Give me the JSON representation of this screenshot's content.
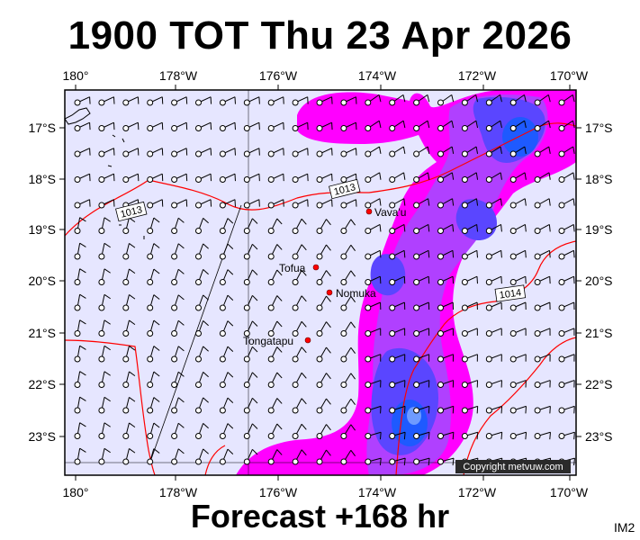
{
  "title": "1900 TOT Thu 23 Apr 2026",
  "footer": "Forecast +168 hr",
  "corner_tag": "IM2",
  "copyright": "Copyright metvuw.com",
  "colors": {
    "map_background": "#e6e6ff",
    "isobar": "#ff0000",
    "precip_light": "#ff00ff",
    "precip_medium": "#b040ff",
    "precip_heavy": "#5a46ff",
    "precip_extreme": "#1e5aff",
    "place_marker": "#ff0000"
  },
  "axes": {
    "lon_labels": [
      "180°",
      "178°W",
      "176°W",
      "174°W",
      "172°W",
      "170°W"
    ],
    "lat_labels": [
      "17°S",
      "18°S",
      "19°S",
      "20°S",
      "21°S",
      "22°S",
      "23°S"
    ]
  },
  "places": [
    {
      "name": "Vava'u",
      "lon": -174.0,
      "lat": -18.65
    },
    {
      "name": "Tofua",
      "lon": -175.05,
      "lat": -19.75
    },
    {
      "name": "Nomuka",
      "lon": -174.8,
      "lat": -20.25
    },
    {
      "name": "Tongatapu",
      "lon": -175.2,
      "lat": -21.15
    }
  ],
  "isobar_labels": [
    {
      "text": "1013",
      "lon": -174.5,
      "lat": -18.2
    },
    {
      "text": "1013",
      "lon": -179.3,
      "lat": -18.6
    },
    {
      "text": "1014",
      "lon": -171.1,
      "lat": -20.25
    }
  ]
}
